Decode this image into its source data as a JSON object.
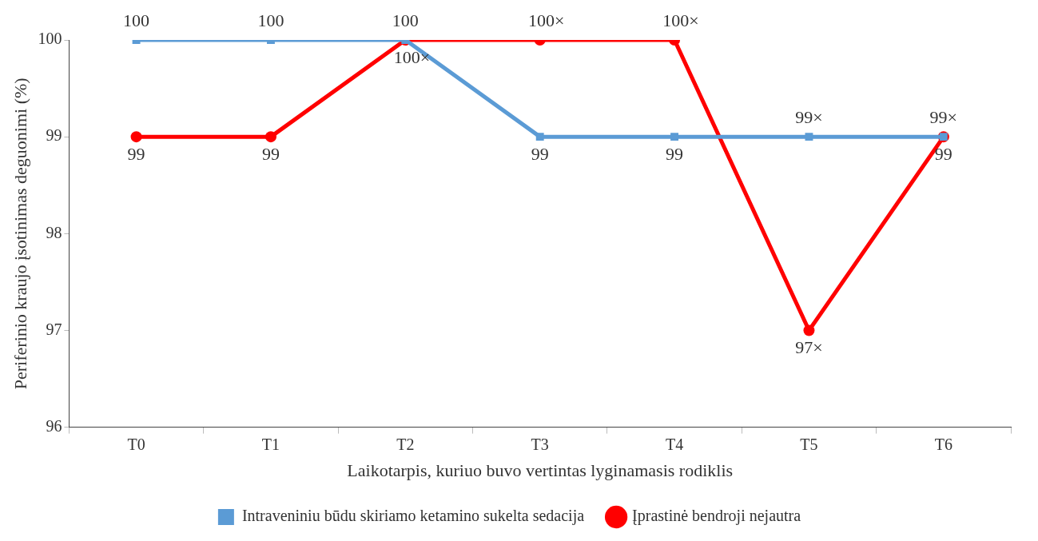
{
  "chart_data": {
    "type": "line",
    "xlabel": "Laikotarpis, kuriuo buvo vertintas lyginamasis rodiklis",
    "ylabel": "Periferinio kraujo įsotinimas deguonimi (%)",
    "categories": [
      "T0",
      "T1",
      "T2",
      "T3",
      "T4",
      "T5",
      "T6"
    ],
    "series": [
      {
        "name": "Intraveniniu būdu skiriamo ketamino sukelta sedacija",
        "color": "#5b9bd5",
        "marker": "square",
        "values": [
          100,
          100,
          100,
          99,
          99,
          99,
          99
        ],
        "value_labels": [
          "100",
          "100",
          "100",
          "99",
          "99",
          "99×",
          "99×"
        ]
      },
      {
        "name": "Įprastinė bendroji nejautra",
        "color": "#ff0000",
        "marker": "circle",
        "values": [
          99,
          99,
          100,
          100,
          100,
          97,
          99
        ],
        "value_labels": [
          "99",
          "99",
          "100×",
          "100×",
          "100×",
          "97×",
          "99"
        ]
      }
    ],
    "ylim": [
      96,
      100
    ],
    "yticks": [
      96,
      97,
      98,
      99,
      100
    ],
    "grid": false,
    "legend": "bottom"
  }
}
